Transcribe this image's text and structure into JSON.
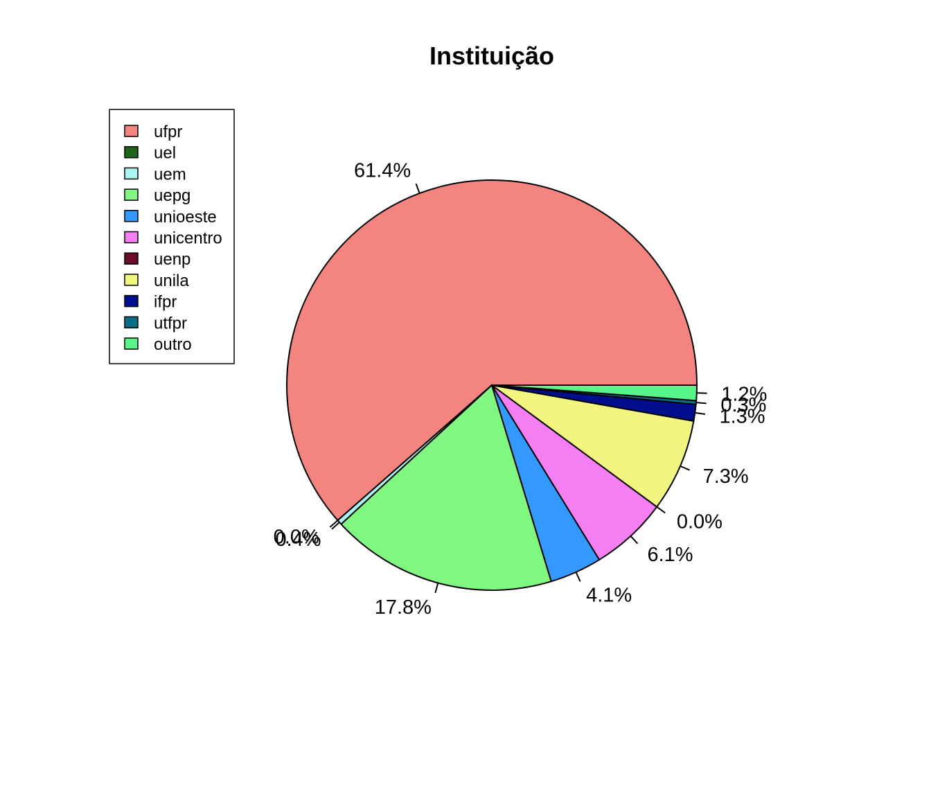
{
  "chart_data": {
    "type": "pie",
    "title": "Instituição",
    "legend_position": "top-left",
    "slices": [
      {
        "name": "ufpr",
        "value": 61.4,
        "label": "61.4%",
        "color": "#F48480"
      },
      {
        "name": "uel",
        "value": 0.0,
        "label": "0.0%",
        "color": "#1E6419"
      },
      {
        "name": "uem",
        "value": 0.4,
        "label": "0.4%",
        "color": "#A9F5F2"
      },
      {
        "name": "uepg",
        "value": 17.8,
        "label": "17.8%",
        "color": "#80F780"
      },
      {
        "name": "unioeste",
        "value": 4.1,
        "label": "4.1%",
        "color": "#3399FF"
      },
      {
        "name": "unicentro",
        "value": 6.1,
        "label": "6.1%",
        "color": "#F57FF2"
      },
      {
        "name": "uenp",
        "value": 0.0,
        "label": "0.0%",
        "color": "#6A0F2A"
      },
      {
        "name": "unila",
        "value": 7.3,
        "label": "7.3%",
        "color": "#F2F57F"
      },
      {
        "name": "ifpr",
        "value": 1.3,
        "label": "1.3%",
        "color": "#000D8C"
      },
      {
        "name": "utfpr",
        "value": 0.3,
        "label": "0.3%",
        "color": "#0B6E87"
      },
      {
        "name": "outro",
        "value": 1.2,
        "label": "1.2%",
        "color": "#57F58A"
      }
    ]
  }
}
